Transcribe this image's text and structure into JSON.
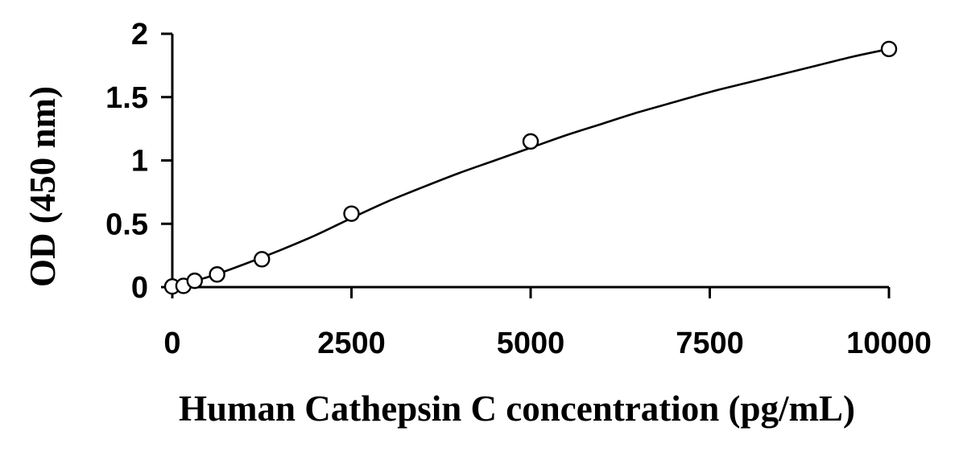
{
  "chart_data": {
    "type": "scatter",
    "title": "",
    "xlabel": "Human Cathepsin C concentration (pg/mL)",
    "ylabel": "OD (450 nm)",
    "xlim": [
      0,
      10000
    ],
    "ylim": [
      0,
      2
    ],
    "x_ticks": [
      0,
      2500,
      5000,
      7500,
      10000
    ],
    "x_tick_labels": [
      "0",
      "2500",
      "5000",
      "7500",
      "10000"
    ],
    "y_ticks": [
      0,
      0.5,
      1,
      1.5,
      2
    ],
    "y_tick_labels": [
      "0",
      "0.5",
      "1",
      "1.5",
      "2"
    ],
    "grid": false,
    "legend": false,
    "series": [
      {
        "marker": "open-circle",
        "x": [
          0,
          156,
          312,
          625,
          1250,
          2500,
          5000,
          10000
        ],
        "y": [
          0.005,
          0.01,
          0.05,
          0.1,
          0.22,
          0.58,
          1.15,
          1.88
        ]
      }
    ],
    "fit_curve": {
      "x": [
        0,
        500,
        1000,
        1500,
        2000,
        2500,
        3000,
        3500,
        4000,
        4500,
        5000,
        5500,
        6000,
        6500,
        7000,
        7500,
        8000,
        8500,
        9000,
        9500,
        10000
      ],
      "y": [
        0.005,
        0.08,
        0.18,
        0.29,
        0.41,
        0.545,
        0.675,
        0.79,
        0.9,
        1.0,
        1.1,
        1.2,
        1.29,
        1.38,
        1.46,
        1.54,
        1.61,
        1.68,
        1.75,
        1.82,
        1.88
      ]
    },
    "colors": {
      "line": "#000000",
      "marker_fill": "#ffffff",
      "background": "#ffffff"
    }
  }
}
